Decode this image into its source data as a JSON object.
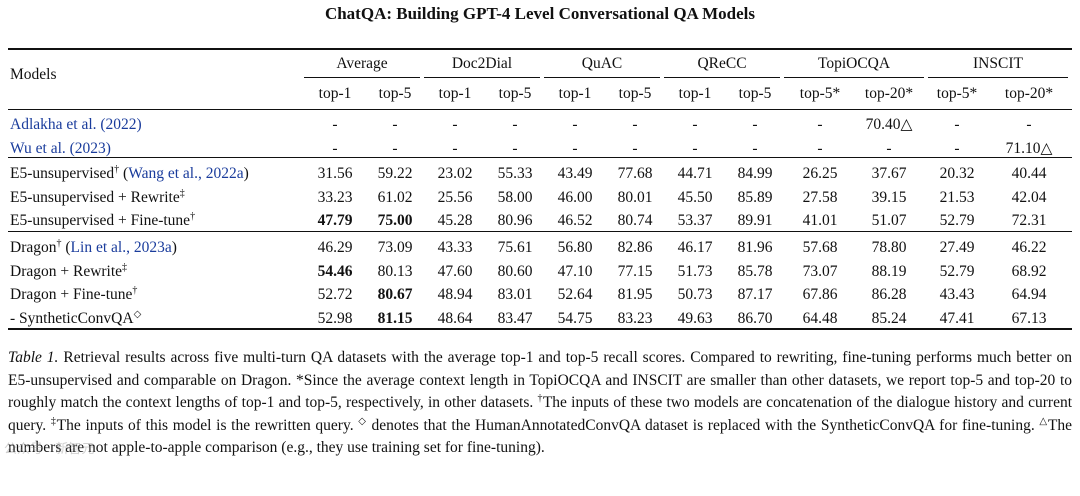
{
  "header": {
    "title": "ChatQA: Building GPT-4 Level Conversational QA Models"
  },
  "table": {
    "models_label": "Models",
    "groups": [
      {
        "name": "Average",
        "sub": [
          "top-1",
          "top-5"
        ]
      },
      {
        "name": "Doc2Dial",
        "sub": [
          "top-1",
          "top-5"
        ]
      },
      {
        "name": "QuAC",
        "sub": [
          "top-1",
          "top-5"
        ]
      },
      {
        "name": "QReCC",
        "sub": [
          "top-1",
          "top-5"
        ]
      },
      {
        "name": "TopiOCQA",
        "sub": [
          "top-5*",
          "top-20*"
        ]
      },
      {
        "name": "INSCIT",
        "sub": [
          "top-5*",
          "top-20*"
        ]
      }
    ],
    "sections": [
      [
        {
          "model": "Adlakha et al. (2022)",
          "ref_style": true,
          "values": [
            "-",
            "-",
            "-",
            "-",
            "-",
            "-",
            "-",
            "-",
            "-",
            "70.40△",
            "-",
            "-"
          ],
          "bold": []
        },
        {
          "model": "Wu et al. (2023)",
          "ref_style": true,
          "values": [
            "-",
            "-",
            "-",
            "-",
            "-",
            "-",
            "-",
            "-",
            "-",
            "-",
            "-",
            "71.10△"
          ],
          "bold": []
        }
      ],
      [
        {
          "model": "E5-unsupervised",
          "sup": "†",
          "ref": "Wang et al., 2022a",
          "values": [
            "31.56",
            "59.22",
            "23.02",
            "55.33",
            "43.49",
            "77.68",
            "44.71",
            "84.99",
            "26.25",
            "37.67",
            "20.32",
            "40.44"
          ],
          "bold": []
        },
        {
          "model": "E5-unsupervised + Rewrite",
          "sup": "‡",
          "values": [
            "33.23",
            "61.02",
            "25.56",
            "58.00",
            "46.00",
            "80.01",
            "45.50",
            "85.89",
            "27.58",
            "39.15",
            "21.53",
            "42.04"
          ],
          "bold": []
        },
        {
          "model": "E5-unsupervised + Fine-tune",
          "sup": "†",
          "values": [
            "47.79",
            "75.00",
            "45.28",
            "80.96",
            "46.52",
            "80.74",
            "53.37",
            "89.91",
            "41.01",
            "51.07",
            "52.79",
            "72.31"
          ],
          "bold": [
            0,
            1
          ]
        }
      ],
      [
        {
          "model": "Dragon",
          "sup": "†",
          "ref": "Lin et al., 2023a",
          "values": [
            "46.29",
            "73.09",
            "43.33",
            "75.61",
            "56.80",
            "82.86",
            "46.17",
            "81.96",
            "57.68",
            "78.80",
            "27.49",
            "46.22"
          ],
          "bold": []
        },
        {
          "model": "Dragon + Rewrite",
          "sup": "‡",
          "values": [
            "54.46",
            "80.13",
            "47.60",
            "80.60",
            "47.10",
            "77.15",
            "51.73",
            "85.78",
            "73.07",
            "88.19",
            "52.79",
            "68.92"
          ],
          "bold": [
            0
          ]
        },
        {
          "model": "Dragon + Fine-tune",
          "sup": "†",
          "values": [
            "52.72",
            "80.67",
            "48.94",
            "83.01",
            "52.64",
            "81.95",
            "50.73",
            "87.17",
            "67.86",
            "86.28",
            "43.43",
            "64.94"
          ],
          "bold": [
            1
          ]
        },
        {
          "model": "- SyntheticConvQA",
          "sup": "◇",
          "values": [
            "52.98",
            "81.15",
            "48.64",
            "83.47",
            "54.75",
            "83.23",
            "49.63",
            "86.70",
            "64.48",
            "85.24",
            "47.41",
            "67.13"
          ],
          "bold": [
            1
          ]
        }
      ]
    ]
  },
  "caption": {
    "label": "Table 1.",
    "s1": " Retrieval results across five multi-turn QA datasets with the average top-1 and top-5 recall scores. Compared to rewriting, fine-tuning performs much better on E5-unsupervised and comparable on Dragon. *Since the average context length in TopiOCQA and INSCIT are smaller than other datasets, we report top-5 and top-20 to roughly match the context lengths of top-1 and top-5, respectively, in other datasets. ",
    "m1": "†",
    "s2": "The inputs of these two models are concatenation of the dialogue history and current query. ",
    "m2": "‡",
    "s3": "The inputs of this model is the rewritten query. ",
    "m3": "◇",
    "s4": " denotes that the HumanAnnotatedConvQA dataset is replaced with the SyntheticConvQA for fine-tuning. ",
    "m4": "△",
    "s5": "The numbers are not apple-to-apple comparison (e.g., they use training set for fine-tuning)."
  },
  "watermark": {
    "text": "公众号 · 新智元"
  }
}
